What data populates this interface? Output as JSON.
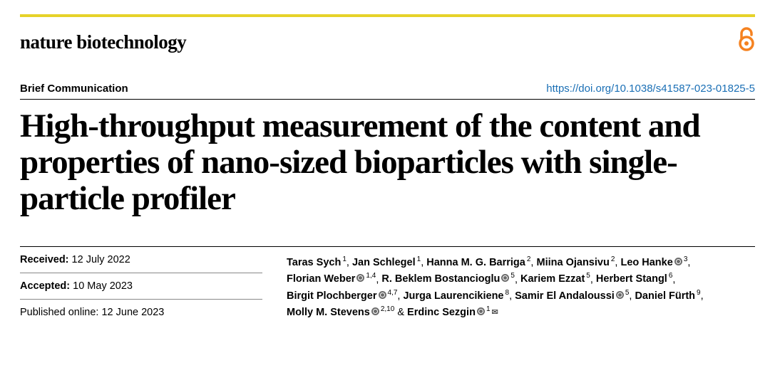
{
  "journal": "nature biotechnology",
  "open_access": true,
  "category": "Brief Communication",
  "doi_url": "https://doi.org/10.1038/s41587-023-01825-5",
  "title": "High-throughput measurement of the content and properties of nano-sized bioparticles with single-particle profiler",
  "dates": {
    "received_label": "Received:",
    "received": "12 July 2022",
    "accepted_label": "Accepted:",
    "accepted": "10 May 2023",
    "published_label": "Published online:",
    "published": "12 June 2023"
  },
  "authors": [
    {
      "name": "Taras Sych",
      "aff": "1"
    },
    {
      "name": "Jan Schlegel",
      "aff": "1"
    },
    {
      "name": "Hanna M. G. Barriga",
      "aff": "2"
    },
    {
      "name": "Miina Ojansivu",
      "aff": "2"
    },
    {
      "name": "Leo Hanke",
      "aff": "3",
      "orcid": true
    },
    {
      "name": "Florian Weber",
      "aff": "1,4",
      "orcid": true
    },
    {
      "name": "R. Beklem Bostancioglu",
      "aff": "5",
      "orcid": true
    },
    {
      "name": "Kariem Ezzat",
      "aff": "5"
    },
    {
      "name": "Herbert Stangl",
      "aff": "6"
    },
    {
      "name": "Birgit Plochberger",
      "aff": "4,7",
      "orcid": true
    },
    {
      "name": "Jurga Laurencikiene",
      "aff": "8"
    },
    {
      "name": "Samir El Andaloussi",
      "aff": "5",
      "orcid": true
    },
    {
      "name": "Daniel Fürth",
      "aff": "9"
    },
    {
      "name": "Molly M. Stevens",
      "aff": "2,10",
      "orcid": true
    },
    {
      "name": "Erdinc Sezgin",
      "aff": "1",
      "orcid": true,
      "corresponding": true
    }
  ],
  "colors": {
    "top_rule": "#e6d229",
    "oa": "#f58220",
    "link": "#1a6fb5",
    "text": "#000000",
    "bg": "#ffffff"
  }
}
